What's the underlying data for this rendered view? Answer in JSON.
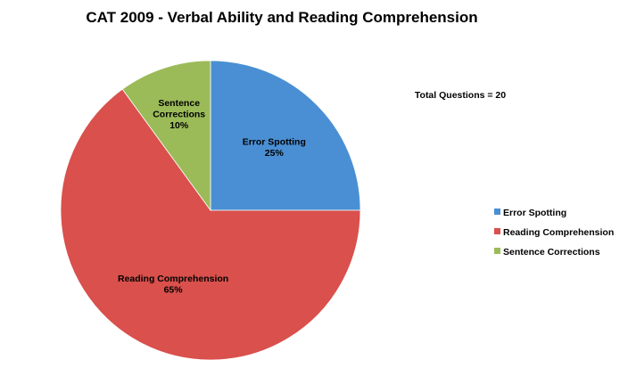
{
  "chart_data": {
    "type": "pie",
    "title": "CAT 2009 - Verbal Ability and Reading Comprehension",
    "annotation": "Total Questions = 20",
    "legend_position": "right",
    "slices": [
      {
        "label": "Error Spotting",
        "value": 25,
        "value_label": "25%",
        "label_lines": [
          "Error Spotting"
        ],
        "color": "#4a8fd3"
      },
      {
        "label": "Reading Comprehension",
        "value": 65,
        "value_label": "65%",
        "label_lines": [
          "Reading Comprehension"
        ],
        "color": "#d9504c"
      },
      {
        "label": "Sentence Corrections",
        "value": 10,
        "value_label": "10%",
        "label_lines": [
          "Sentence",
          "Corrections"
        ],
        "color": "#9bbb59"
      }
    ]
  }
}
